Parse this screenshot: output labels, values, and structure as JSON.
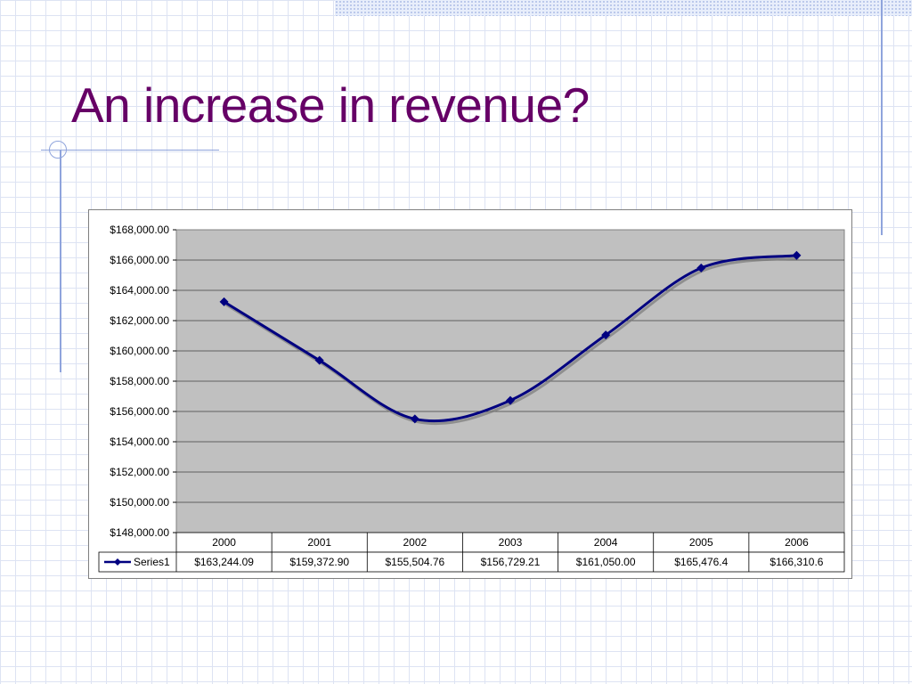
{
  "slide": {
    "title": "An increase in revenue?"
  },
  "colors": {
    "title": "#660066",
    "series_line": "#000080",
    "plot_area": "#c0c0c0"
  },
  "chart_data": {
    "type": "line",
    "categories": [
      "2000",
      "2001",
      "2002",
      "2003",
      "2004",
      "2005",
      "2006"
    ],
    "series": [
      {
        "name": "Series1",
        "values": [
          163244.09,
          159372.9,
          155504.76,
          156729.21,
          161050.0,
          165476.4,
          166310.6
        ],
        "labels": [
          "$163,244.09",
          "$159,372.90",
          "$155,504.76",
          "$156,729.21",
          "$161,050.00",
          "$165,476.4",
          "$166,310.6"
        ]
      }
    ],
    "ylim": [
      148000,
      168000
    ],
    "y_ticks": [
      168000,
      166000,
      164000,
      162000,
      160000,
      158000,
      156000,
      154000,
      152000,
      150000,
      148000
    ],
    "y_tick_labels": [
      "$168,000.00",
      "$166,000.00",
      "$164,000.00",
      "$162,000.00",
      "$160,000.00",
      "$158,000.00",
      "$156,000.00",
      "$154,000.00",
      "$152,000.00",
      "$150,000.00",
      "$148,000.00"
    ],
    "grid": true,
    "legend": "data-table",
    "smoothed": true,
    "marker": "diamond"
  }
}
